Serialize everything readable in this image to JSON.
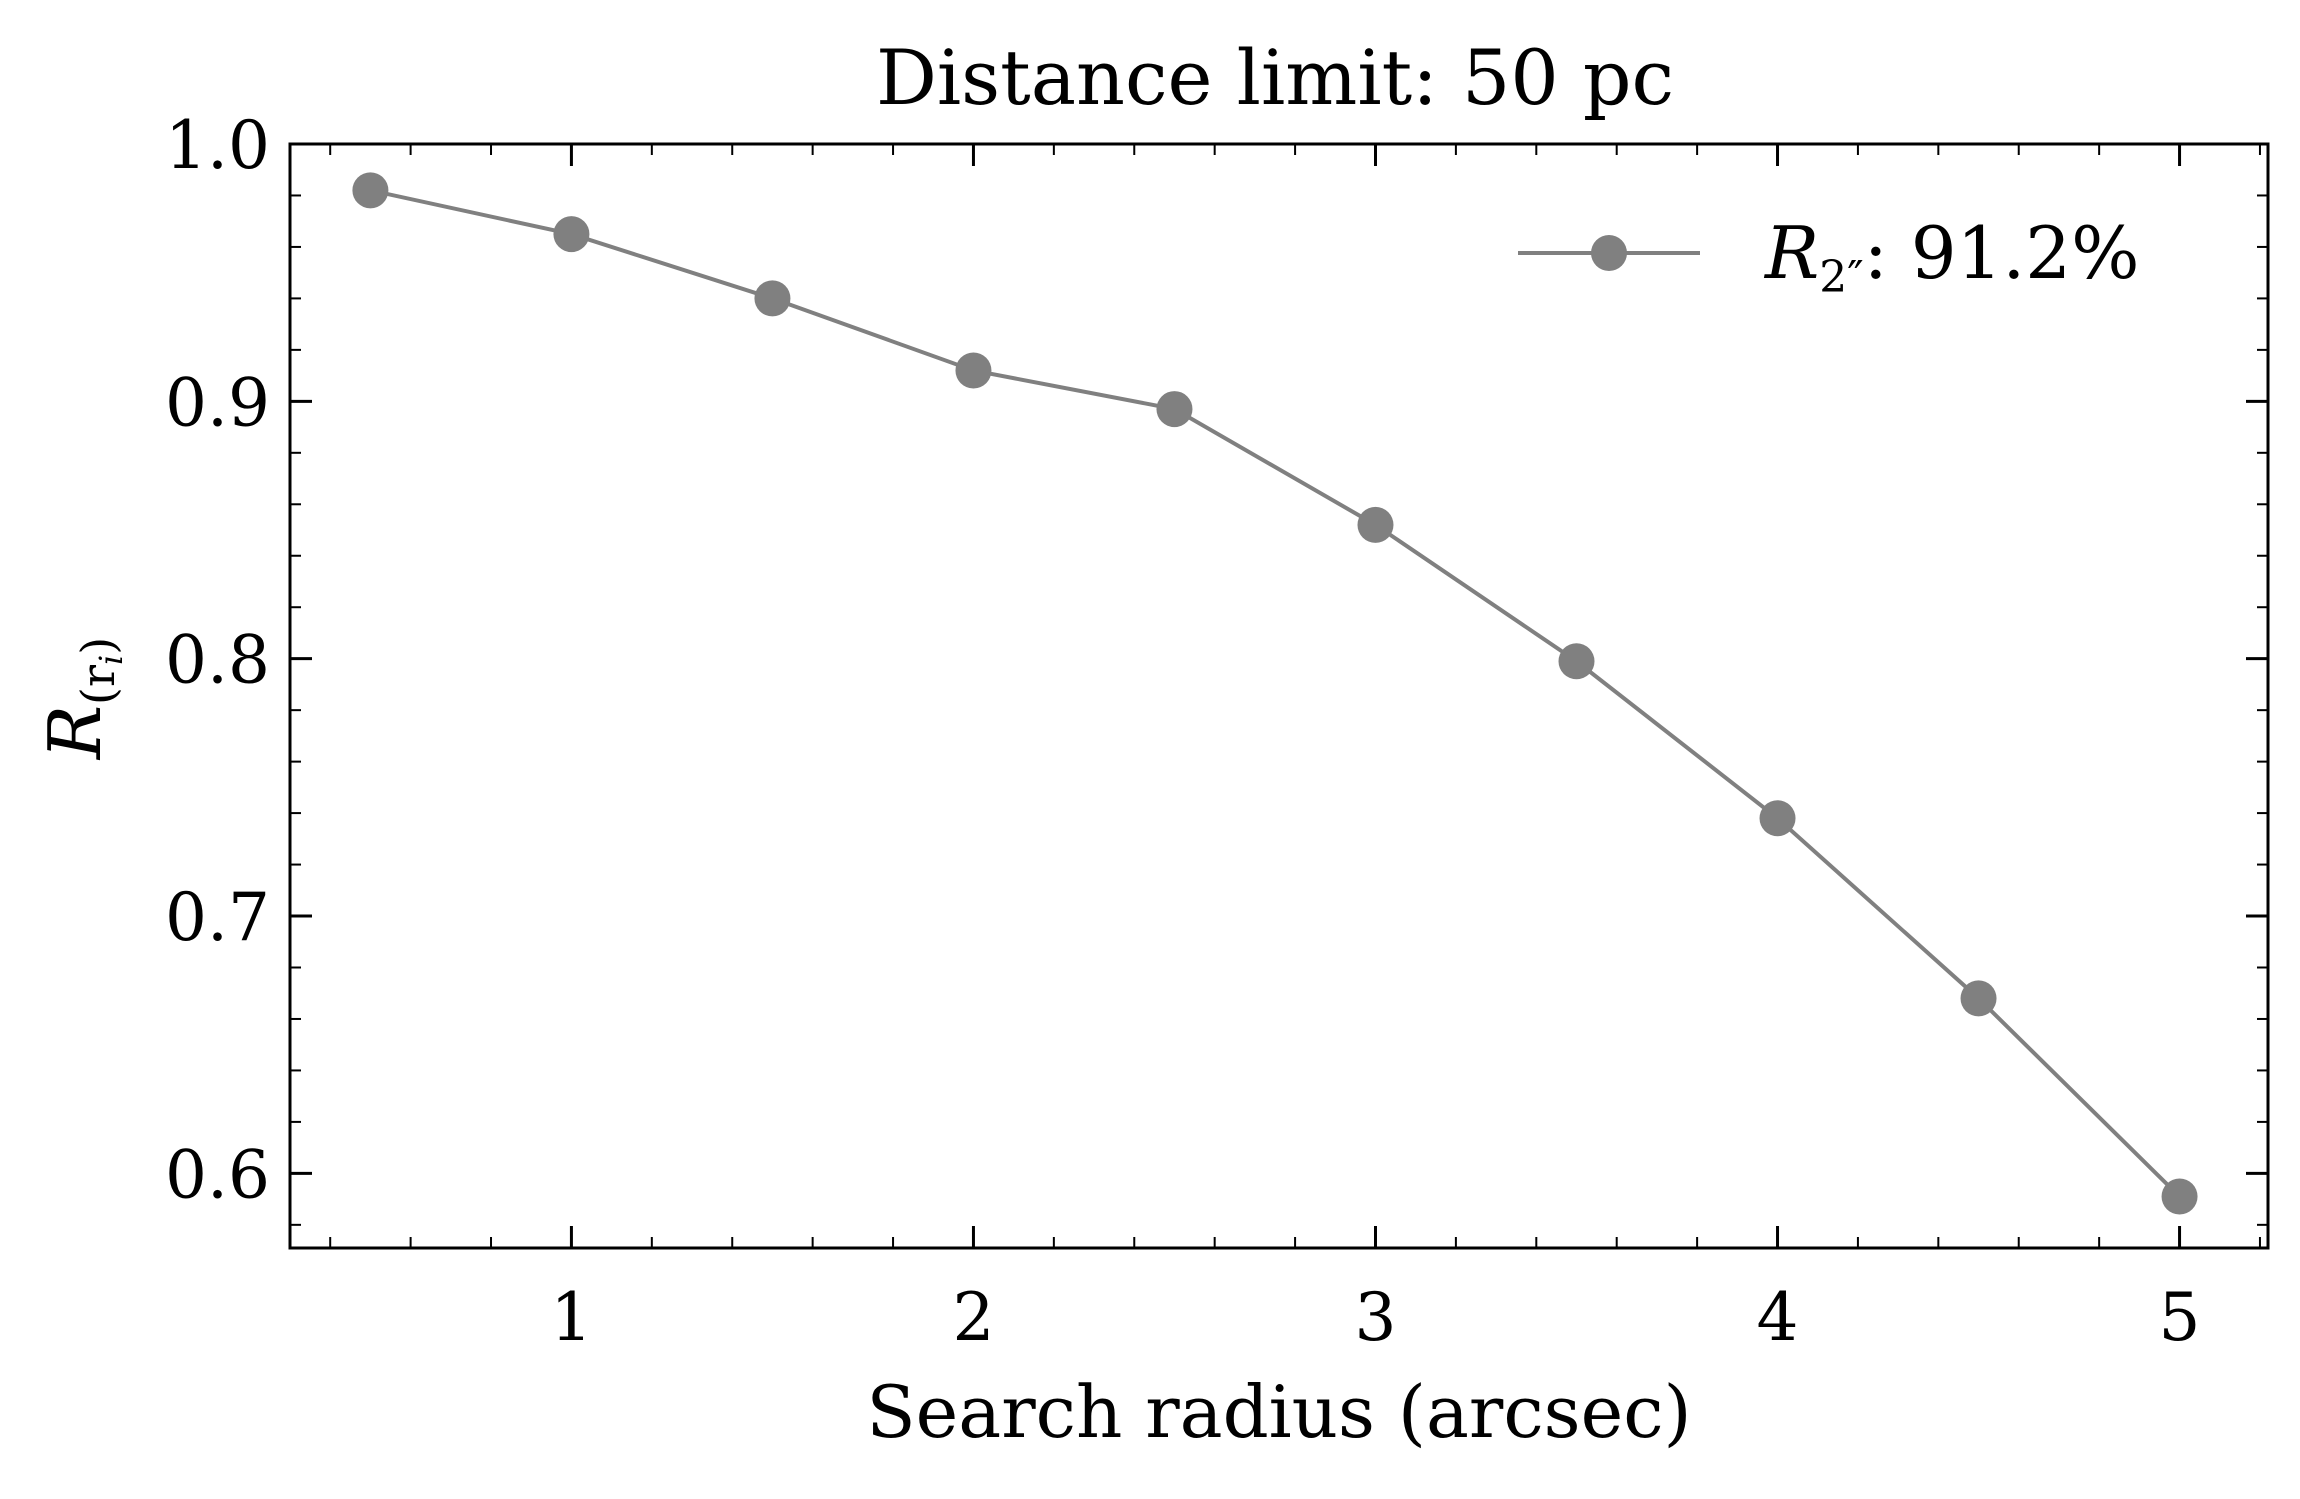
{
  "chart_data": {
    "type": "line",
    "title": "Distance limit: 50 pc",
    "xlabel": "Search radius (arcsec)",
    "ylabel": {
      "symbol": "R",
      "subscript": "(r",
      "subsubscript": "i",
      "close": ")"
    },
    "xlim": [
      0.3,
      5.22
    ],
    "ylim": [
      0.571,
      1.0
    ],
    "xticks": [
      1,
      2,
      3,
      4,
      5
    ],
    "yticks": [
      0.6,
      0.7,
      0.8,
      0.9,
      1.0
    ],
    "xtick_labels": [
      "1",
      "2",
      "3",
      "4",
      "5"
    ],
    "ytick_labels": [
      "0.6",
      "0.7",
      "0.8",
      "0.9",
      "1.0"
    ],
    "grid": false,
    "legend_position": "top-right",
    "series": [
      {
        "name": {
          "symbol": "R",
          "subscript": "2″",
          "suffix": ": 91.2%"
        },
        "color": "#808080",
        "marker": "circle",
        "x": [
          0.5,
          1.0,
          1.5,
          2.0,
          2.5,
          3.0,
          3.5,
          4.0,
          4.5,
          5.0
        ],
        "y": [
          0.982,
          0.965,
          0.94,
          0.912,
          0.897,
          0.852,
          0.799,
          0.738,
          0.668,
          0.591
        ]
      }
    ]
  }
}
